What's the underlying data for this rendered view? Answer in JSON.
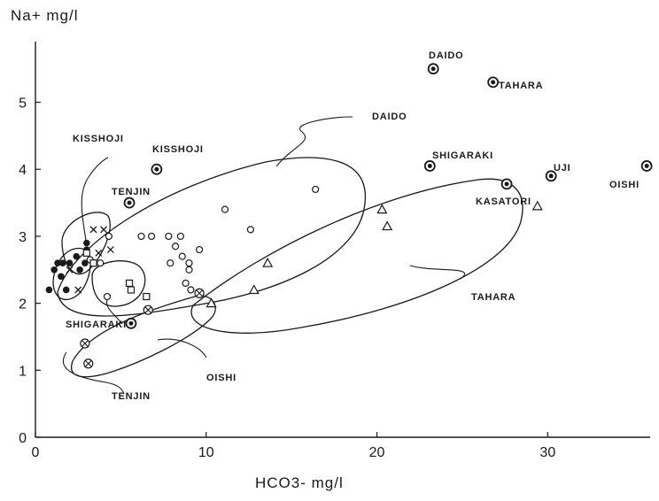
{
  "chart_data": {
    "type": "scatter",
    "ylabel": "Na+ mg/l",
    "xlabel": "HCO3- mg/l",
    "xlim": [
      0,
      36
    ],
    "ylim": [
      0,
      5.8
    ],
    "x_ticks": [
      "0",
      "10",
      "20",
      "30"
    ],
    "y_ticks": [
      "0",
      "1",
      "2",
      "3",
      "4",
      "5"
    ],
    "x_tick_values": [
      0,
      10,
      20,
      30
    ],
    "y_tick_values": [
      0,
      1,
      2,
      3,
      4,
      5
    ],
    "grid": false,
    "series": [
      {
        "marker": "dotted-circle",
        "points": [
          [
            23.3,
            5.5
          ],
          [
            26.8,
            5.3
          ],
          [
            23.1,
            4.05
          ],
          [
            27.6,
            3.78
          ],
          [
            30.2,
            3.9
          ],
          [
            35.8,
            4.05
          ],
          [
            7.1,
            4.0
          ],
          [
            5.5,
            3.5
          ],
          [
            5.6,
            1.7
          ]
        ]
      },
      {
        "marker": "open-circle",
        "points": [
          [
            4.3,
            3.0
          ],
          [
            6.2,
            3.0
          ],
          [
            6.8,
            3.0
          ],
          [
            7.8,
            3.0
          ],
          [
            8.5,
            3.0
          ],
          [
            8.2,
            2.85
          ],
          [
            8.6,
            2.7
          ],
          [
            9.0,
            2.6
          ],
          [
            7.9,
            2.6
          ],
          [
            8.8,
            2.3
          ],
          [
            9.6,
            2.8
          ],
          [
            9.1,
            2.2
          ],
          [
            11.1,
            3.4
          ],
          [
            12.6,
            3.1
          ],
          [
            16.4,
            3.7
          ],
          [
            3.2,
            2.65
          ],
          [
            3.8,
            2.6
          ],
          [
            4.2,
            2.1
          ],
          [
            9.0,
            2.5
          ]
        ]
      },
      {
        "marker": "filled-circle",
        "points": [
          [
            0.8,
            2.2
          ],
          [
            1.5,
            2.4
          ],
          [
            1.8,
            2.2
          ],
          [
            1.6,
            2.6
          ],
          [
            2.0,
            2.6
          ],
          [
            2.4,
            2.7
          ],
          [
            2.6,
            2.5
          ],
          [
            2.9,
            2.6
          ],
          [
            3.0,
            2.8
          ],
          [
            3.0,
            2.9
          ],
          [
            1.3,
            2.6
          ],
          [
            1.1,
            2.5
          ]
        ]
      },
      {
        "marker": "cross",
        "points": [
          [
            3.4,
            3.1
          ],
          [
            4.0,
            3.1
          ],
          [
            2.0,
            2.5
          ],
          [
            2.5,
            2.2
          ],
          [
            3.7,
            2.75
          ],
          [
            4.4,
            2.8
          ]
        ]
      },
      {
        "marker": "square",
        "points": [
          [
            3.0,
            2.75
          ],
          [
            3.4,
            2.6
          ],
          [
            5.5,
            2.3
          ],
          [
            5.6,
            2.2
          ],
          [
            6.5,
            2.1
          ]
        ]
      },
      {
        "marker": "crossed-circle",
        "points": [
          [
            6.6,
            1.9
          ],
          [
            2.9,
            1.4
          ],
          [
            3.1,
            1.1
          ],
          [
            9.6,
            2.15
          ]
        ]
      },
      {
        "marker": "triangle",
        "points": [
          [
            10.3,
            2.0
          ],
          [
            12.8,
            2.2
          ],
          [
            13.6,
            2.6
          ],
          [
            20.3,
            3.4
          ],
          [
            20.6,
            3.15
          ],
          [
            29.4,
            3.45
          ]
        ]
      }
    ],
    "annotations": [
      "DAIDO",
      "TAHARA",
      "DAIDO",
      "SHIGARAKI",
      "UJI",
      "OISHI",
      "KASATORI",
      "KISSHOJI",
      "KISSHOJI",
      "TENJIN",
      "TAHARA",
      "SHIGARAKI",
      "OISHI",
      "TENJIN"
    ]
  }
}
